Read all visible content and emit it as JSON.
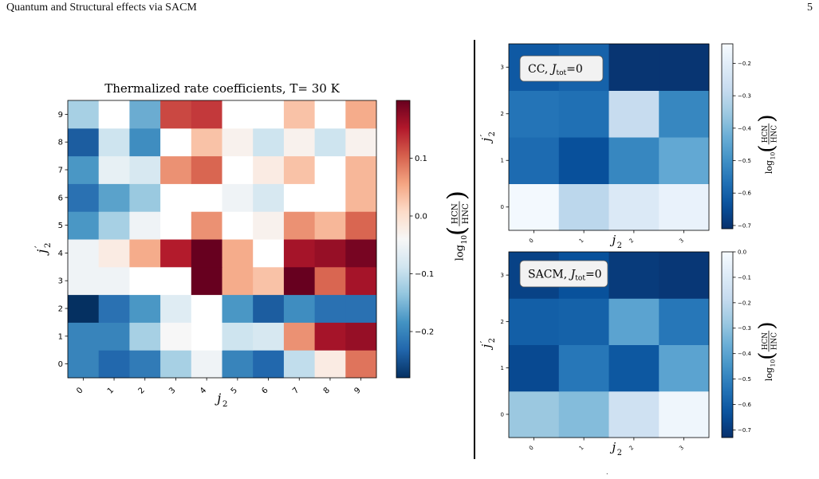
{
  "header": {
    "left": "Quantum and Structural effects via SACM",
    "page_number": "5"
  },
  "stray_mark": ".",
  "chart_data": [
    {
      "type": "heatmap",
      "title": "Thermalized rate coefficients, T= 30 K",
      "xlabel": "j_2",
      "ylabel": "j'_2",
      "x_categories": [
        "0",
        "1",
        "2",
        "3",
        "4",
        "5",
        "6",
        "7",
        "8",
        "9"
      ],
      "y_categories": [
        "0",
        "1",
        "2",
        "3",
        "4",
        "5",
        "6",
        "7",
        "8",
        "9"
      ],
      "colormap": "RdBu_r",
      "vmin": -0.28,
      "vmax": 0.2,
      "colorbar_ticks": [
        "0.1",
        "0.0",
        "−0.1",
        "−0.2"
      ],
      "colorbar_tick_values": [
        0.1,
        0.0,
        -0.1,
        -0.2
      ],
      "colorbar_label": "log10(HCN/HNC)",
      "values": [
        [
          -0.2,
          -0.23,
          -0.21,
          -0.12,
          -0.05,
          -0.2,
          -0.23,
          -0.1,
          -0.02,
          0.09
        ],
        [
          -0.2,
          -0.2,
          -0.12,
          -0.04,
          0.0,
          -0.09,
          -0.08,
          0.07,
          0.16,
          0.17
        ],
        [
          -0.28,
          -0.22,
          -0.18,
          -0.07,
          0.0,
          -0.18,
          -0.24,
          -0.19,
          -0.22,
          -0.22
        ],
        [
          -0.05,
          -0.05,
          0.0,
          0.0,
          0.2,
          0.05,
          0.03,
          0.2,
          0.1,
          0.16
        ],
        [
          -0.05,
          -0.02,
          0.05,
          0.15,
          0.2,
          0.05,
          0.0,
          0.16,
          0.17,
          0.19
        ],
        [
          -0.18,
          -0.12,
          -0.05,
          0.0,
          0.07,
          0.0,
          -0.03,
          0.07,
          0.04,
          0.1
        ],
        [
          -0.22,
          -0.17,
          -0.13,
          0.0,
          0.0,
          -0.05,
          -0.08,
          0.0,
          0.0,
          0.04
        ],
        [
          -0.18,
          -0.06,
          -0.08,
          0.07,
          0.1,
          0.0,
          -0.02,
          0.03,
          0.0,
          0.04
        ],
        [
          -0.24,
          -0.09,
          -0.19,
          0.0,
          0.03,
          -0.03,
          -0.09,
          -0.03,
          -0.09,
          -0.03
        ],
        [
          -0.12,
          0.0,
          -0.16,
          0.12,
          0.13,
          0.0,
          0.0,
          0.03,
          0.0,
          0.05
        ]
      ]
    },
    {
      "type": "heatmap",
      "annotation": "CC, J_tot=0",
      "xlabel": "j_2",
      "ylabel": "j'_2",
      "x_categories": [
        "0",
        "1",
        "2",
        "3"
      ],
      "y_categories": [
        "0",
        "1",
        "2",
        "3"
      ],
      "colormap": "Blues_r",
      "vmin": -0.71,
      "vmax": -0.14,
      "colorbar_ticks": [
        "−0.2",
        "−0.3",
        "−0.4",
        "−0.5",
        "−0.6",
        "−0.7"
      ],
      "colorbar_tick_values": [
        -0.2,
        -0.3,
        -0.4,
        -0.5,
        -0.6,
        -0.7
      ],
      "colorbar_label": "log10(HCN/HNC)",
      "values": [
        [
          -0.15,
          -0.3,
          -0.22,
          -0.18
        ],
        [
          -0.58,
          -0.64,
          -0.52,
          -0.44
        ],
        [
          -0.56,
          -0.57,
          -0.28,
          -0.52
        ],
        [
          -0.62,
          -0.6,
          -0.7,
          -0.7
        ]
      ]
    },
    {
      "type": "heatmap",
      "annotation": "SACM, J_tot=0",
      "xlabel": "j_2",
      "ylabel": "j'_2",
      "x_categories": [
        "0",
        "1",
        "2",
        "3"
      ],
      "y_categories": [
        "0",
        "1",
        "2",
        "3"
      ],
      "colormap": "Blues_r",
      "vmin": -0.73,
      "vmax": 0.0,
      "colorbar_ticks": [
        "0.0",
        "−0.1",
        "−0.2",
        "−0.3",
        "−0.4",
        "−0.5",
        "−0.6",
        "−0.7"
      ],
      "colorbar_tick_values": [
        0.0,
        -0.1,
        -0.2,
        -0.3,
        -0.4,
        -0.5,
        -0.6,
        -0.7
      ],
      "colorbar_label": "log10(HCN/HNC)",
      "values": [
        [
          -0.28,
          -0.32,
          -0.15,
          -0.03
        ],
        [
          -0.66,
          -0.53,
          -0.62,
          -0.4
        ],
        [
          -0.6,
          -0.59,
          -0.4,
          -0.53
        ],
        [
          -0.68,
          -0.64,
          -0.7,
          -0.71
        ]
      ]
    }
  ]
}
